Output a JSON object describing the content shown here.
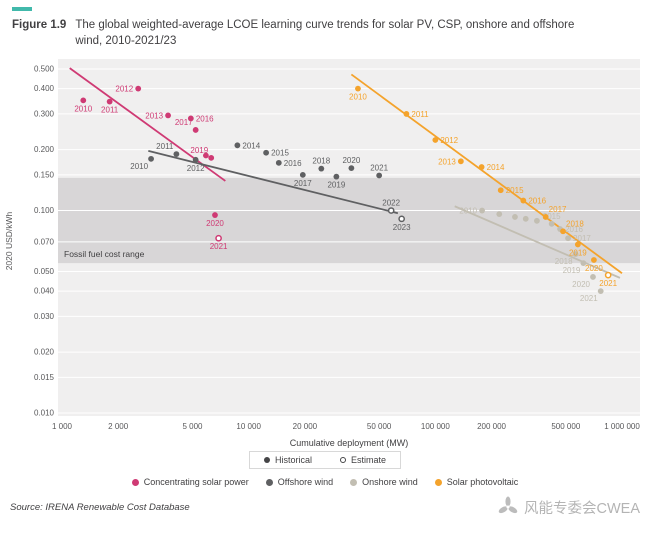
{
  "header": {
    "accent_color": "#41b9ab",
    "figure_label": "Figure 1.9",
    "title": "The global weighted-average LCOE learning curve trends for solar PV, CSP, onshore and offshore wind, 2010-2021/23"
  },
  "chart_data": {
    "type": "scatter",
    "x_axis": {
      "label": "Cumulative deployment (MW)",
      "scale": "log",
      "tick_values": [
        1000,
        2000,
        5000,
        10000,
        20000,
        50000,
        100000,
        200000,
        500000,
        1000000
      ],
      "tick_labels": [
        "1 000",
        "2 000",
        "5 000",
        "10 000",
        "20 000",
        "50 000",
        "100 000",
        "200 000",
        "500 000",
        "1 000 000"
      ],
      "range": [
        1000,
        1000000
      ]
    },
    "y_axis": {
      "label": "2020 USD/kWh",
      "scale": "log",
      "tick_values": [
        0.5,
        0.4,
        0.3,
        0.2,
        0.15,
        0.1,
        0.07,
        0.05,
        0.04,
        0.03,
        0.02,
        0.015,
        0.01
      ],
      "tick_labels": [
        "0.500",
        "0.400",
        "0.300",
        "0.200",
        "0.150",
        "0.100",
        "0.070",
        "0.050",
        "0.040",
        "0.030",
        "0.020",
        "0.015",
        "0.010"
      ],
      "range": [
        0.01,
        0.5
      ]
    },
    "grid": "horizontal-white",
    "legend_position": "bottom",
    "band": {
      "label": "Fossil fuel cost range",
      "from": 0.055,
      "to": 0.145,
      "color": "#d8d6d7"
    },
    "legend_type": [
      {
        "label": "Historical",
        "style": "filled",
        "color": "#454547"
      },
      {
        "label": "Estimate",
        "style": "open",
        "color": "#454547"
      }
    ],
    "series": [
      {
        "name": "Concentrating solar power",
        "color": "#cf3a74",
        "trend": [
          [
            1100,
            0.505
          ],
          [
            7500,
            0.14
          ]
        ],
        "points": [
          {
            "year": "2010",
            "x": 1300,
            "y": 0.35,
            "lp": "b"
          },
          {
            "year": "2011",
            "x": 1800,
            "y": 0.345,
            "lp": "b"
          },
          {
            "year": "2012",
            "x": 2560,
            "y": 0.4,
            "lp": "l"
          },
          {
            "year": "2013",
            "x": 3700,
            "y": 0.295,
            "lp": "l"
          },
          {
            "year": "2016",
            "x": 4900,
            "y": 0.285,
            "lp": "r"
          },
          {
            "year": "2017",
            "x": 5200,
            "y": 0.25,
            "lp": "al"
          },
          {
            "year": "2018",
            "x": 5900,
            "y": 0.187,
            "lp": ""
          },
          {
            "year": "2019",
            "x": 6300,
            "y": 0.182,
            "lp": "al"
          },
          {
            "year": "2020",
            "x": 6600,
            "y": 0.095,
            "lp": "b"
          },
          {
            "year": "2021",
            "x": 6900,
            "y": 0.073,
            "lp": "b",
            "estimate": true
          }
        ]
      },
      {
        "name": "Offshore wind",
        "color": "#5f6062",
        "trend": [
          [
            2900,
            0.197
          ],
          [
            63000,
            0.097
          ]
        ],
        "points": [
          {
            "year": "2010",
            "x": 3000,
            "y": 0.18,
            "lp": "bl"
          },
          {
            "year": "2011",
            "x": 4100,
            "y": 0.19,
            "lp": "al"
          },
          {
            "year": "2012",
            "x": 5200,
            "y": 0.178,
            "lp": "b"
          },
          {
            "year": "2014",
            "x": 8700,
            "y": 0.21,
            "lp": "r"
          },
          {
            "year": "2015",
            "x": 12400,
            "y": 0.193,
            "lp": "r"
          },
          {
            "year": "2016",
            "x": 14500,
            "y": 0.172,
            "lp": "r"
          },
          {
            "year": "2017",
            "x": 19500,
            "y": 0.15,
            "lp": "b"
          },
          {
            "year": "2018",
            "x": 24500,
            "y": 0.161,
            "lp": "a"
          },
          {
            "year": "2019",
            "x": 29500,
            "y": 0.147,
            "lp": "b"
          },
          {
            "year": "2020",
            "x": 35500,
            "y": 0.162,
            "lp": "a"
          },
          {
            "year": "2021",
            "x": 50000,
            "y": 0.149,
            "lp": "a"
          },
          {
            "year": "2022",
            "x": 58000,
            "y": 0.1,
            "lp": "a",
            "estimate": true
          },
          {
            "year": "2023",
            "x": 66000,
            "y": 0.091,
            "lp": "b",
            "estimate": true
          }
        ]
      },
      {
        "name": "Onshore wind",
        "color": "#c2beb2",
        "trend": [
          [
            127000,
            0.105
          ],
          [
            975000,
            0.0465
          ]
        ],
        "points": [
          {
            "year": "2010",
            "x": 178000,
            "y": 0.1,
            "lp": "l"
          },
          {
            "year": "2011",
            "x": 220000,
            "y": 0.096,
            "lp": ""
          },
          {
            "year": "2012",
            "x": 267000,
            "y": 0.093,
            "lp": ""
          },
          {
            "year": "2013",
            "x": 305000,
            "y": 0.091,
            "lp": ""
          },
          {
            "year": "2014",
            "x": 350000,
            "y": 0.089,
            "lp": ""
          },
          {
            "year": "2015",
            "x": 420000,
            "y": 0.086,
            "lp": "a"
          },
          {
            "year": "2016",
            "x": 466000,
            "y": 0.081,
            "lp": "r"
          },
          {
            "year": "2017",
            "x": 514000,
            "y": 0.073,
            "lp": "r"
          },
          {
            "year": "2018",
            "x": 564000,
            "y": 0.061,
            "lp": "bl"
          },
          {
            "year": "2019",
            "x": 621000,
            "y": 0.055,
            "lp": "bl"
          },
          {
            "year": "2020",
            "x": 699000,
            "y": 0.047,
            "lp": "bl"
          },
          {
            "year": "2021",
            "x": 769000,
            "y": 0.04,
            "lp": "bl"
          }
        ]
      },
      {
        "name": "Solar photovoltaic",
        "color": "#f4a32c",
        "trend": [
          [
            35500,
            0.47
          ],
          [
            1000000,
            0.049
          ]
        ],
        "points": [
          {
            "year": "2010",
            "x": 38500,
            "y": 0.4,
            "lp": "b"
          },
          {
            "year": "2011",
            "x": 70000,
            "y": 0.3,
            "lp": "r"
          },
          {
            "year": "2012",
            "x": 100000,
            "y": 0.223,
            "lp": "r"
          },
          {
            "year": "2013",
            "x": 137000,
            "y": 0.175,
            "lp": "l"
          },
          {
            "year": "2014",
            "x": 177000,
            "y": 0.164,
            "lp": "r"
          },
          {
            "year": "2015",
            "x": 224000,
            "y": 0.126,
            "lp": "r"
          },
          {
            "year": "2016",
            "x": 296000,
            "y": 0.112,
            "lp": "r"
          },
          {
            "year": "2017",
            "x": 390000,
            "y": 0.093,
            "lp": "ar"
          },
          {
            "year": "2018",
            "x": 483000,
            "y": 0.079,
            "lp": "ar"
          },
          {
            "year": "2019",
            "x": 580000,
            "y": 0.068,
            "lp": "b"
          },
          {
            "year": "2020",
            "x": 707000,
            "y": 0.057,
            "lp": "b"
          },
          {
            "year": "2021",
            "x": 843000,
            "y": 0.048,
            "lp": "b",
            "estimate": true
          }
        ]
      }
    ]
  },
  "source": "Source: IRENA Renewable Cost Database",
  "watermark": {
    "text": "风能专委会CWEA"
  }
}
